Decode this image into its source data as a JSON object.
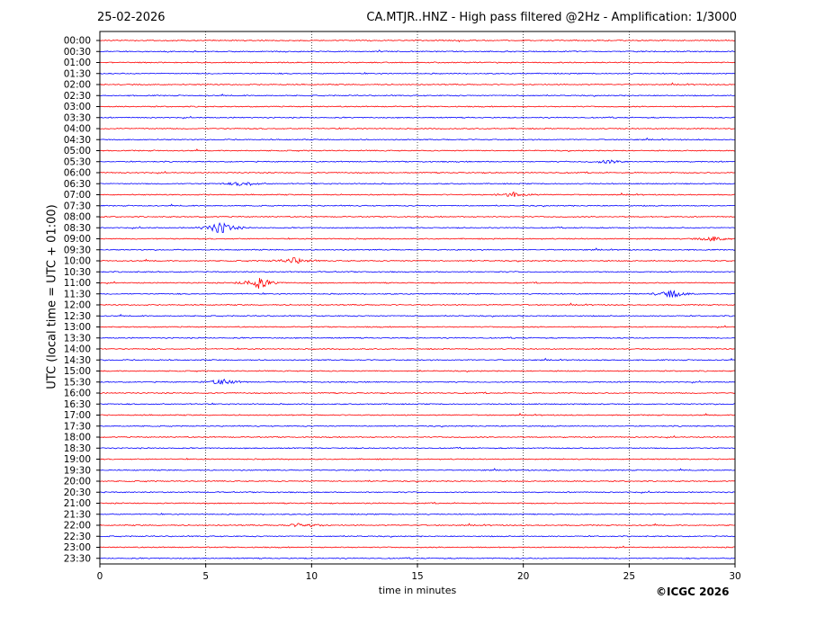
{
  "header": {
    "date": "25-02-2026",
    "title": "CA.MTJR..HNZ - High pass filtered @2Hz - Amplification: 1/3000"
  },
  "footer": {
    "copyright": "©ICGC 2026"
  },
  "chart_data": {
    "type": "line",
    "title": "CA.MTJR..HNZ - High pass filtered @2Hz - Amplification: 1/3000",
    "xlabel": "time in minutes",
    "ylabel": "UTC (local time = UTC + 01:00)",
    "xlim": [
      0,
      30
    ],
    "x_ticks": [
      0,
      5,
      10,
      15,
      20,
      25,
      30
    ],
    "x_grid": "dotted",
    "row_labels": [
      "00:00",
      "00:30",
      "01:00",
      "01:30",
      "02:00",
      "02:30",
      "03:00",
      "03:30",
      "04:00",
      "04:30",
      "05:00",
      "05:30",
      "06:00",
      "06:30",
      "07:00",
      "07:30",
      "08:00",
      "08:30",
      "09:00",
      "09:30",
      "10:00",
      "10:30",
      "11:00",
      "11:30",
      "12:00",
      "12:30",
      "13:00",
      "13:30",
      "14:00",
      "14:30",
      "15:00",
      "15:30",
      "16:00",
      "16:30",
      "17:00",
      "17:30",
      "18:00",
      "18:30",
      "19:00",
      "19:30",
      "20:00",
      "20:30",
      "21:00",
      "21:30",
      "22:00",
      "22:30",
      "23:00",
      "23:30"
    ],
    "row_colors": [
      "#ff0000",
      "#0000ff"
    ],
    "events": [
      {
        "row": "08:30",
        "minute": 5.7,
        "amplitude": 1.0
      },
      {
        "row": "11:00",
        "minute": 7.5,
        "amplitude": 0.9
      },
      {
        "row": "11:30",
        "minute": 27.0,
        "amplitude": 0.6
      },
      {
        "row": "05:30",
        "minute": 24.0,
        "amplitude": 0.3
      },
      {
        "row": "06:30",
        "minute": 6.8,
        "amplitude": 0.4
      },
      {
        "row": "07:00",
        "minute": 19.6,
        "amplitude": 0.4
      },
      {
        "row": "09:00",
        "minute": 29.0,
        "amplitude": 0.4
      },
      {
        "row": "10:00",
        "minute": 9.2,
        "amplitude": 0.5
      },
      {
        "row": "15:30",
        "minute": 5.8,
        "amplitude": 0.5
      },
      {
        "row": "22:00",
        "minute": 9.6,
        "amplitude": 0.4
      }
    ]
  }
}
